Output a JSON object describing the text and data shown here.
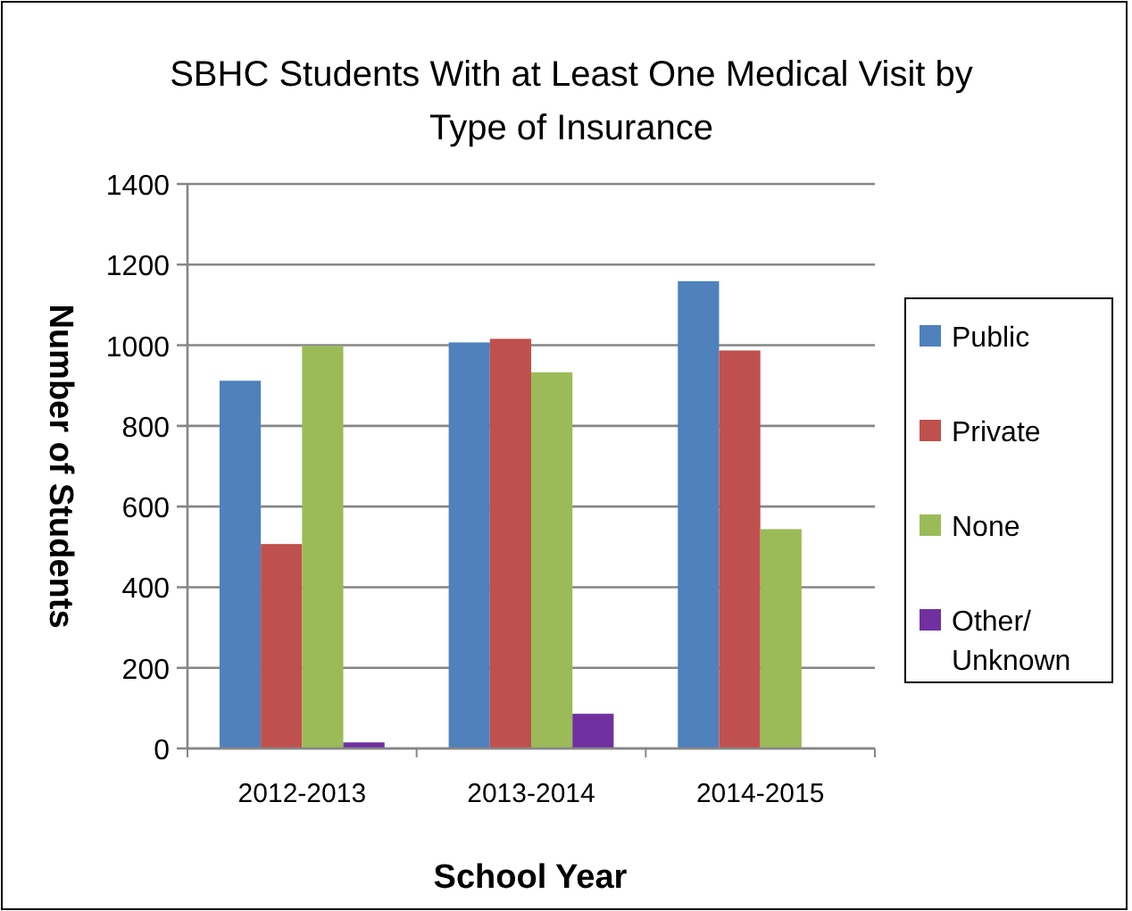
{
  "chart_data": {
    "type": "bar",
    "title": "SBHC Students  With at Least One Medical Visit by Type of Insurance",
    "xlabel": "School Year",
    "ylabel": "Number of Students",
    "categories": [
      "2012-2013",
      "2013-2014",
      "2014-2015"
    ],
    "series": [
      {
        "name": "Public",
        "color": "#4f81bd",
        "values": [
          912,
          1007,
          1159
        ]
      },
      {
        "name": "Private",
        "color": "#c0504d",
        "values": [
          507,
          1016,
          987
        ]
      },
      {
        "name": "None",
        "color": "#9bbb59",
        "values": [
          998,
          933,
          544
        ]
      },
      {
        "name": "Other/ Unknown",
        "color": "#7030a0",
        "values": [
          15,
          86,
          0
        ]
      }
    ],
    "ylim": [
      0,
      1400
    ],
    "yticks": [
      0,
      200,
      400,
      600,
      800,
      1000,
      1200,
      1400
    ],
    "grid": "y",
    "legend": "right"
  }
}
